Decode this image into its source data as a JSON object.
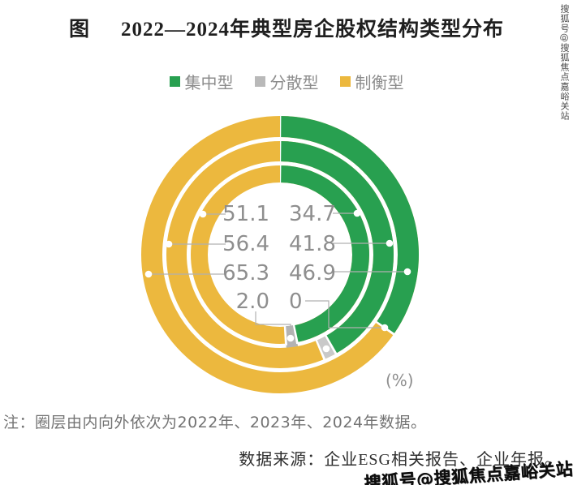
{
  "title": {
    "prefix": "图",
    "text": "2022—2024年典型房企股权结构类型分布"
  },
  "chart_data": {
    "type": "donut-multi-ring",
    "unit_label": "(%)",
    "legend": [
      {
        "label": "集中型",
        "color": "#28a050"
      },
      {
        "label": "分散型",
        "color": "#b9b9b9"
      },
      {
        "label": "制衡型",
        "color": "#ecb83e"
      }
    ],
    "rings_inner_to_outer": [
      {
        "year": "2022",
        "concentrated": 46.9,
        "dispersed": 2.0,
        "balanced": 51.1
      },
      {
        "year": "2023",
        "concentrated": 41.8,
        "dispersed": 1.8,
        "balanced": 56.4
      },
      {
        "year": "2024",
        "concentrated": 34.7,
        "dispersed": 0,
        "balanced": 65.3
      }
    ],
    "center_label_rows": [
      {
        "left": "51.1",
        "right": "34.7"
      },
      {
        "left": "56.4",
        "right": "41.8"
      },
      {
        "left": "65.3",
        "right": "46.9"
      },
      {
        "left": "2.0",
        "right": "0"
      }
    ]
  },
  "notes": {
    "ring_note": "注：圈层由内向外依次为2022年、2023年、2024年数据。",
    "source": "数据来源：企业ESG相关报告、企业年报。"
  },
  "watermark": {
    "text": "搜狐号@搜狐焦点嘉峪关站"
  }
}
